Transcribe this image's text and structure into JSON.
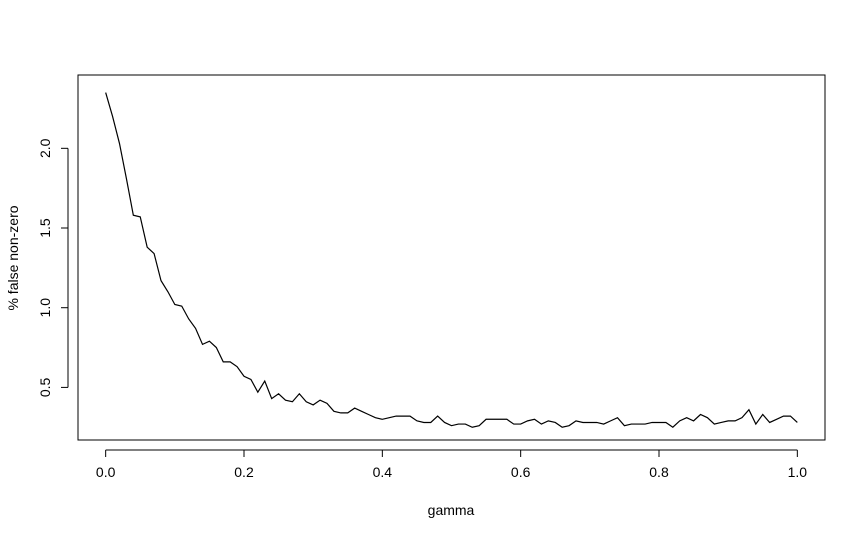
{
  "chart_data": {
    "type": "line",
    "xlabel": "gamma",
    "ylabel": "% false non-zero",
    "x": [
      0,
      0.01,
      0.02,
      0.03,
      0.04,
      0.05,
      0.06,
      0.07,
      0.08,
      0.09,
      0.1,
      0.11,
      0.12,
      0.13,
      0.14,
      0.15,
      0.16,
      0.17,
      0.18,
      0.19,
      0.2,
      0.21,
      0.22,
      0.23,
      0.24,
      0.25,
      0.26,
      0.27,
      0.28,
      0.29,
      0.3,
      0.31,
      0.32,
      0.33,
      0.34,
      0.35,
      0.36,
      0.37,
      0.38,
      0.39,
      0.4,
      0.41,
      0.42,
      0.43,
      0.44,
      0.45,
      0.46,
      0.47,
      0.48,
      0.49,
      0.5,
      0.51,
      0.52,
      0.53,
      0.54,
      0.55,
      0.56,
      0.57,
      0.58,
      0.59,
      0.6,
      0.61,
      0.62,
      0.63,
      0.64,
      0.65,
      0.66,
      0.67,
      0.68,
      0.69,
      0.7,
      0.71,
      0.72,
      0.73,
      0.74,
      0.75,
      0.76,
      0.77,
      0.78,
      0.79,
      0.8,
      0.81,
      0.82,
      0.83,
      0.84,
      0.85,
      0.86,
      0.87,
      0.88,
      0.89,
      0.9,
      0.91,
      0.92,
      0.93,
      0.94,
      0.95,
      0.96,
      0.97,
      0.98,
      0.99,
      1
    ],
    "series": [
      {
        "name": "% false non-zero",
        "color": "#000000",
        "values": [
          2.35,
          2.2,
          2.03,
          1.81,
          1.58,
          1.57,
          1.38,
          1.34,
          1.17,
          1.1,
          1.02,
          1.01,
          0.93,
          0.87,
          0.77,
          0.79,
          0.75,
          0.66,
          0.66,
          0.63,
          0.57,
          0.55,
          0.47,
          0.54,
          0.43,
          0.46,
          0.42,
          0.41,
          0.46,
          0.41,
          0.39,
          0.42,
          0.4,
          0.35,
          0.34,
          0.34,
          0.37,
          0.35,
          0.33,
          0.31,
          0.3,
          0.31,
          0.32,
          0.32,
          0.32,
          0.29,
          0.28,
          0.28,
          0.32,
          0.28,
          0.26,
          0.27,
          0.27,
          0.25,
          0.26,
          0.3,
          0.3,
          0.3,
          0.3,
          0.27,
          0.27,
          0.29,
          0.3,
          0.27,
          0.29,
          0.28,
          0.25,
          0.26,
          0.29,
          0.28,
          0.28,
          0.28,
          0.27,
          0.29,
          0.31,
          0.26,
          0.27,
          0.27,
          0.27,
          0.28,
          0.28,
          0.28,
          0.25,
          0.29,
          0.31,
          0.29,
          0.33,
          0.31,
          0.27,
          0.28,
          0.29,
          0.29,
          0.31,
          0.36,
          0.27,
          0.33,
          0.28,
          0.3,
          0.32,
          0.32,
          0.28
        ]
      }
    ],
    "xlim": [
      -0.04,
      1.04
    ],
    "ylim": [
      0.17,
      2.46
    ],
    "xticks": [
      {
        "value": 0,
        "label": "0.0"
      },
      0.2,
      0.4,
      0.6,
      0.8,
      {
        "value": 1,
        "label": "1.0"
      }
    ],
    "yticks": [
      0.5,
      {
        "value": 1,
        "label": "1.0"
      },
      1.5,
      {
        "value": 2,
        "label": "2.0"
      }
    ]
  }
}
